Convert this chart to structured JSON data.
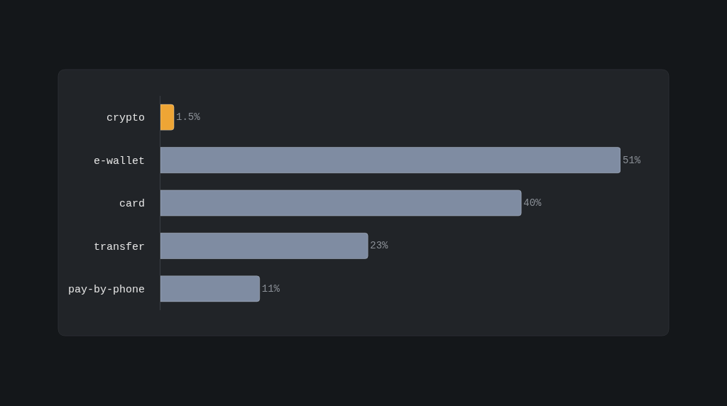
{
  "chart_data": {
    "type": "bar",
    "orientation": "horizontal",
    "categories": [
      "crypto",
      "e-wallet",
      "card",
      "transfer",
      "pay-by-phone"
    ],
    "values": [
      1.5,
      51,
      40,
      23,
      11
    ],
    "colors": [
      "#eea535",
      "#7f8ca2",
      "#7f8ca2",
      "#7f8ca2",
      "#7f8ca2"
    ],
    "value_labels": [
      "1.5%",
      "51%",
      "40%",
      "23%",
      "11%"
    ]
  }
}
